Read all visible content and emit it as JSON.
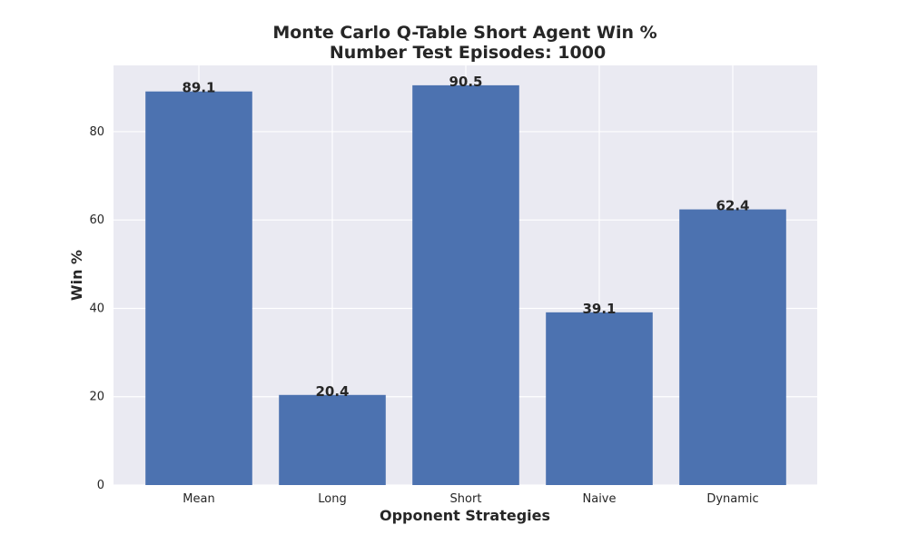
{
  "chart_data": {
    "type": "bar",
    "title": "Monte Carlo Q-Table Short Agent Win %",
    "subtitle": "Number Test Episodes: 1000",
    "xlabel": "Opponent Strategies",
    "ylabel": "Win %",
    "categories": [
      "Mean",
      "Long",
      "Short",
      "Naive",
      "Dynamic"
    ],
    "values": [
      89.1,
      20.4,
      90.5,
      39.1,
      62.4
    ],
    "data_labels": [
      "89.1",
      "20.4",
      "90.5",
      "39.1",
      "62.4"
    ],
    "ylim": [
      0,
      95
    ],
    "yticks": [
      0,
      20,
      40,
      60,
      80
    ],
    "ytick_labels": [
      "0",
      "20",
      "40",
      "60",
      "80"
    ],
    "grid": true,
    "colors": {
      "bar": "#4c72b0",
      "plot_background": "#eaeaf2",
      "grid": "#ffffff",
      "text": "#262626"
    }
  }
}
